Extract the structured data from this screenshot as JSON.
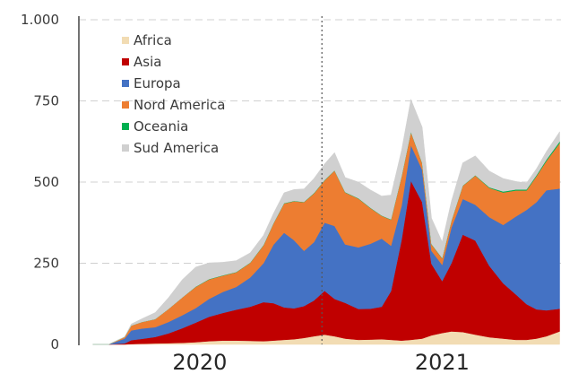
{
  "chart_data": {
    "type": "area",
    "stacked": true,
    "title": "",
    "xlabel": "",
    "ylabel": "",
    "ylim": [
      0,
      1000
    ],
    "yticks": [
      0,
      250,
      500,
      750,
      1000
    ],
    "ytick_labels": [
      "0",
      "250",
      "500",
      "750",
      "1.000"
    ],
    "grid": "horizontal-dashed",
    "legend_position": "top-left",
    "x_labels": [
      {
        "label": "2020",
        "x": "2020-07-01"
      },
      {
        "label": "2021",
        "x": "2021-07-01"
      }
    ],
    "divider_date": "2021-01-01",
    "x": [
      "2020-01-22",
      "2020-02-15",
      "2020-03-10",
      "2020-03-20",
      "2020-04-05",
      "2020-04-25",
      "2020-05-15",
      "2020-06-05",
      "2020-06-25",
      "2020-07-15",
      "2020-08-05",
      "2020-08-25",
      "2020-09-15",
      "2020-10-05",
      "2020-10-20",
      "2020-11-05",
      "2020-11-20",
      "2020-12-05",
      "2020-12-20",
      "2021-01-05",
      "2021-01-20",
      "2021-02-05",
      "2021-02-25",
      "2021-03-15",
      "2021-04-01",
      "2021-04-15",
      "2021-05-01",
      "2021-05-15",
      "2021-06-01",
      "2021-06-15",
      "2021-07-01",
      "2021-07-15",
      "2021-08-01",
      "2021-08-20",
      "2021-09-10",
      "2021-10-01",
      "2021-10-20",
      "2021-11-05",
      "2021-11-20",
      "2021-12-05",
      "2021-12-25"
    ],
    "series": [
      {
        "name": "Africa",
        "color": "#f2dcb3",
        "values": [
          0,
          0,
          0,
          1,
          2,
          3,
          4,
          5,
          7,
          10,
          12,
          12,
          11,
          10,
          12,
          14,
          16,
          20,
          25,
          30,
          25,
          18,
          14,
          15,
          16,
          14,
          12,
          14,
          18,
          28,
          35,
          40,
          38,
          30,
          22,
          18,
          14,
          14,
          18,
          25,
          40
        ]
      },
      {
        "name": "Asia",
        "color": "#c00000",
        "values": [
          0,
          0,
          3,
          12,
          15,
          20,
          30,
          45,
          60,
          75,
          85,
          95,
          105,
          120,
          115,
          100,
          95,
          98,
          110,
          135,
          115,
          110,
          95,
          95,
          100,
          150,
          310,
          490,
          420,
          220,
          160,
          210,
          300,
          290,
          220,
          170,
          140,
          110,
          90,
          80,
          70
        ]
      },
      {
        "name": "Europa",
        "color": "#4472c4",
        "values": [
          0,
          0,
          15,
          30,
          32,
          30,
          35,
          40,
          45,
          55,
          65,
          70,
          90,
          120,
          180,
          230,
          210,
          170,
          180,
          210,
          225,
          180,
          190,
          200,
          210,
          140,
          105,
          110,
          100,
          40,
          50,
          110,
          110,
          110,
          150,
          180,
          240,
          290,
          330,
          370,
          370
        ]
      },
      {
        "name": "Nord America",
        "color": "#ed7d31",
        "values": [
          0,
          0,
          5,
          15,
          20,
          25,
          40,
          55,
          65,
          60,
          50,
          45,
          45,
          55,
          65,
          90,
          120,
          150,
          150,
          130,
          170,
          160,
          150,
          110,
          70,
          80,
          90,
          40,
          20,
          20,
          20,
          20,
          40,
          90,
          90,
          100,
          80,
          60,
          80,
          90,
          140
        ]
      },
      {
        "name": "Oceania",
        "color": "#00b050",
        "values": [
          0,
          0,
          0,
          0,
          0,
          0,
          0,
          0,
          1,
          1,
          1,
          1,
          1,
          1,
          1,
          1,
          1,
          1,
          1,
          1,
          1,
          1,
          1,
          1,
          1,
          1,
          1,
          1,
          1,
          1,
          1,
          1,
          1,
          1,
          2,
          3,
          3,
          3,
          3,
          4,
          5
        ]
      },
      {
        "name": "Sud America",
        "color": "#d0d0d0",
        "values": [
          0,
          0,
          0,
          5,
          10,
          20,
          35,
          55,
          60,
          50,
          40,
          35,
          30,
          30,
          30,
          32,
          35,
          40,
          45,
          50,
          55,
          45,
          50,
          55,
          60,
          75,
          80,
          100,
          110,
          80,
          50,
          60,
          70,
          60,
          50,
          40,
          25,
          20,
          20,
          25,
          30
        ]
      }
    ]
  }
}
